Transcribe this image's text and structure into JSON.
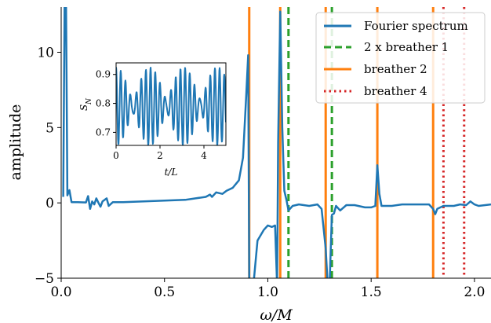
{
  "chart_data": {
    "type": "line",
    "xlabel": "ω/M",
    "ylabel": "amplitude",
    "xlim": [
      0.0,
      2.08
    ],
    "ylim": [
      -5,
      13
    ],
    "xticks": [
      "0.0",
      "0.5",
      "1.0",
      "1.5",
      "2.0"
    ],
    "xtick_values": [
      0.0,
      0.5,
      1.0,
      1.5,
      2.0
    ],
    "yticks": [
      "−5",
      "0",
      "5",
      "10"
    ],
    "ytick_values": [
      -5,
      0,
      5,
      10
    ],
    "legend_position": "top-right",
    "legend": [
      {
        "label": "Fourier spectrum",
        "style": "solid",
        "color": "#1f77b4"
      },
      {
        "label": "2 x breather 1",
        "style": "dashed",
        "color": "#2ca02c"
      },
      {
        "label": "breather 2",
        "style": "solid",
        "color": "#ff7f0e"
      },
      {
        "label": "breather 4",
        "style": "dotted",
        "color": "#d62728"
      }
    ],
    "series": [
      {
        "name": "Fourier spectrum",
        "color": "#1f77b4",
        "points": [
          [
            0.01,
            0.4
          ],
          [
            0.02,
            20
          ],
          [
            0.03,
            0.5
          ],
          [
            0.04,
            0.85
          ],
          [
            0.05,
            0.05
          ],
          [
            0.08,
            0.05
          ],
          [
            0.12,
            0.03
          ],
          [
            0.13,
            0.45
          ],
          [
            0.14,
            -0.4
          ],
          [
            0.15,
            0.1
          ],
          [
            0.16,
            -0.1
          ],
          [
            0.17,
            0.3
          ],
          [
            0.18,
            0.02
          ],
          [
            0.19,
            -0.25
          ],
          [
            0.2,
            0.1
          ],
          [
            0.22,
            0.3
          ],
          [
            0.23,
            -0.2
          ],
          [
            0.25,
            0.05
          ],
          [
            0.3,
            0.05
          ],
          [
            0.4,
            0.1
          ],
          [
            0.5,
            0.15
          ],
          [
            0.6,
            0.2
          ],
          [
            0.65,
            0.3
          ],
          [
            0.7,
            0.4
          ],
          [
            0.72,
            0.55
          ],
          [
            0.73,
            0.4
          ],
          [
            0.75,
            0.7
          ],
          [
            0.78,
            0.6
          ],
          [
            0.8,
            0.8
          ],
          [
            0.83,
            1.0
          ],
          [
            0.86,
            1.5
          ],
          [
            0.88,
            3.0
          ],
          [
            0.895,
            7.0
          ],
          [
            0.905,
            9.8
          ],
          [
            0.91,
            -5.5
          ],
          [
            0.93,
            -5.5
          ],
          [
            0.95,
            -2.5
          ],
          [
            0.98,
            -1.8
          ],
          [
            1.0,
            -1.5
          ],
          [
            1.02,
            -1.6
          ],
          [
            1.035,
            -1.5
          ],
          [
            1.045,
            -5.5
          ],
          [
            1.05,
            4.0
          ],
          [
            1.06,
            12.7
          ],
          [
            1.07,
            5.0
          ],
          [
            1.08,
            0.8
          ],
          [
            1.09,
            0.2
          ],
          [
            1.1,
            -0.5
          ],
          [
            1.12,
            -0.2
          ],
          [
            1.15,
            -0.1
          ],
          [
            1.2,
            -0.2
          ],
          [
            1.24,
            -0.1
          ],
          [
            1.26,
            -0.4
          ],
          [
            1.28,
            -3.0
          ],
          [
            1.29,
            -5.5
          ],
          [
            1.3,
            -5.0
          ],
          [
            1.31,
            -0.8
          ],
          [
            1.32,
            -0.7
          ],
          [
            1.33,
            -0.2
          ],
          [
            1.35,
            -0.5
          ],
          [
            1.38,
            -0.15
          ],
          [
            1.42,
            -0.15
          ],
          [
            1.47,
            -0.3
          ],
          [
            1.5,
            -0.3
          ],
          [
            1.52,
            -0.2
          ],
          [
            1.53,
            2.5
          ],
          [
            1.54,
            0.6
          ],
          [
            1.55,
            -0.2
          ],
          [
            1.6,
            -0.2
          ],
          [
            1.65,
            -0.1
          ],
          [
            1.7,
            -0.1
          ],
          [
            1.75,
            -0.1
          ],
          [
            1.78,
            -0.1
          ],
          [
            1.8,
            -0.4
          ],
          [
            1.81,
            -0.75
          ],
          [
            1.82,
            -0.4
          ],
          [
            1.85,
            -0.2
          ],
          [
            1.9,
            -0.2
          ],
          [
            1.93,
            -0.1
          ],
          [
            1.96,
            -0.15
          ],
          [
            1.98,
            0.1
          ],
          [
            2.0,
            -0.1
          ],
          [
            2.02,
            -0.2
          ],
          [
            2.08,
            -0.1
          ]
        ]
      },
      {
        "name": "2 x breather 1",
        "color": "#2ca02c",
        "vlines": [
          1.1,
          1.31
        ]
      },
      {
        "name": "breather 2",
        "color": "#ff7f0e",
        "vlines": [
          0.91,
          1.06,
          1.28,
          1.53,
          1.8
        ]
      },
      {
        "name": "breather 4",
        "color": "#d62728",
        "vlines": [
          1.85,
          1.95
        ]
      }
    ],
    "inset": {
      "type": "line",
      "xlabel": "t/L",
      "ylabel": "S_N",
      "ylabel_main": "S",
      "ylabel_sub": "N",
      "xlim": [
        0,
        5
      ],
      "ylim": [
        0.655,
        0.94
      ],
      "xticks": [
        "0",
        "2",
        "4"
      ],
      "xtick_values": [
        0,
        2,
        4
      ],
      "yticks": [
        "0.7",
        "0.8",
        "0.9"
      ],
      "ytick_values": [
        0.7,
        0.8,
        0.9
      ],
      "series": [
        {
          "name": "S_N",
          "color": "#1f77b4",
          "function": {
            "offset": 0.79,
            "amp1": 0.08,
            "freq1": 4.45,
            "amp2": 0.055,
            "freq2": 5.1
          },
          "samples": 400
        }
      ]
    }
  }
}
